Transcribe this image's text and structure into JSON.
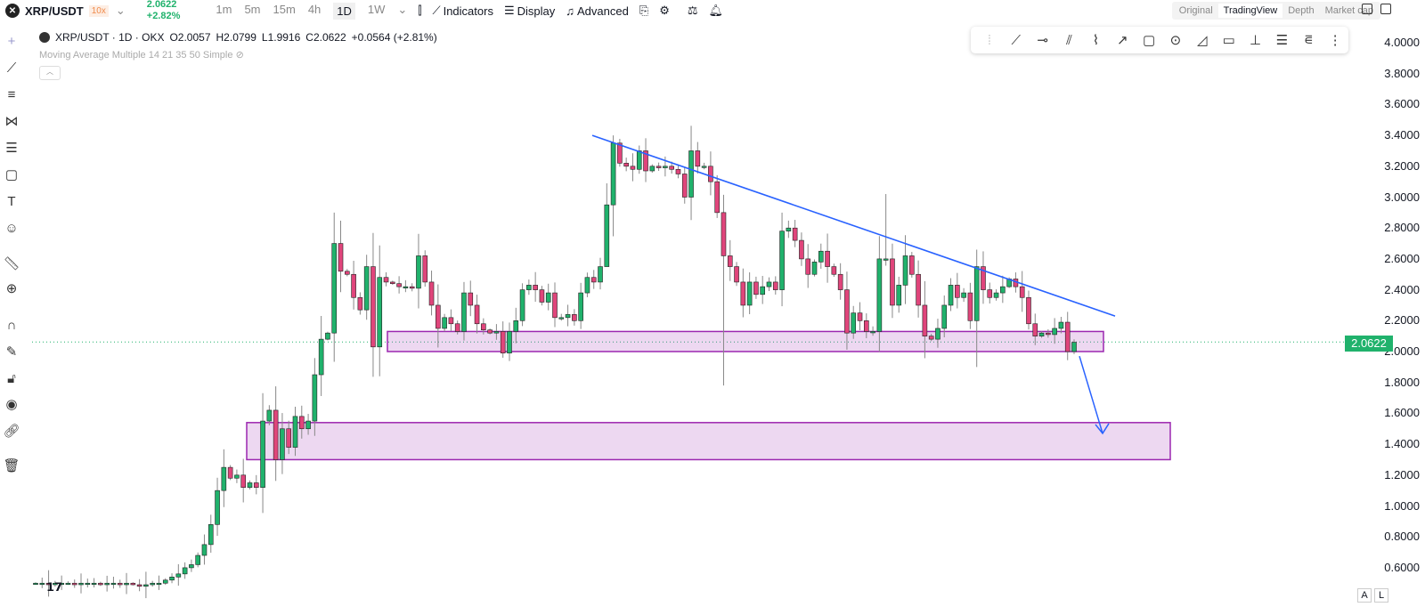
{
  "header": {
    "symbol": "XRP/USDT",
    "leverage": "10x",
    "price": "2.0622",
    "change": "+2.82%",
    "timeframes": [
      "1m",
      "5m",
      "15m",
      "4h",
      "1D",
      "1W"
    ],
    "active_tf": "1D",
    "indicators": "Indicators",
    "display": "Display",
    "advanced": "Advanced",
    "view_tabs": [
      "Original",
      "TradingView",
      "Depth",
      "Market cap"
    ],
    "active_view": "TradingView"
  },
  "legend": {
    "title": "XRP/USDT · 1D · OKX",
    "open": "O2.0057",
    "high": "H2.0799",
    "low": "L1.9916",
    "close": "C2.0622",
    "change": "+0.0564 (+2.81%)",
    "indicator": "Moving Average Multiple 14 21 35 50 Simple"
  },
  "axis": {
    "labels": [
      "4.0000",
      "3.8000",
      "3.6000",
      "3.4000",
      "3.2000",
      "3.0000",
      "2.8000",
      "2.6000",
      "2.4000",
      "2.2000",
      "2.0000",
      "1.8000",
      "1.6000",
      "1.4000",
      "1.2000",
      "1.0000",
      "0.8000",
      "0.6000"
    ],
    "current": "2.0622"
  },
  "bottom": {
    "auto": "A",
    "log": "L"
  },
  "colors": {
    "up": "#20b26c",
    "down": "#e0457b",
    "zone": "#9c27b0",
    "trend": "#2962ff"
  },
  "chart_data": {
    "type": "candlestick",
    "ylim": [
      0.45,
      4.1
    ],
    "closes": [
      0.5,
      0.5,
      0.49,
      0.5,
      0.5,
      0.5,
      0.49,
      0.5,
      0.5,
      0.5,
      0.49,
      0.5,
      0.5,
      0.49,
      0.5,
      0.49,
      0.48,
      0.49,
      0.5,
      0.5,
      0.52,
      0.54,
      0.56,
      0.6,
      0.62,
      0.68,
      0.75,
      0.88,
      1.1,
      1.25,
      1.18,
      1.2,
      1.12,
      1.15,
      1.12,
      1.55,
      1.62,
      1.3,
      1.5,
      1.38,
      1.58,
      1.5,
      1.55,
      1.85,
      2.08,
      2.12,
      2.7,
      2.52,
      2.5,
      2.35,
      2.27,
      2.55,
      2.03,
      2.48,
      2.45,
      2.44,
      2.42,
      2.42,
      2.41,
      2.62,
      2.45,
      2.3,
      2.15,
      2.22,
      2.18,
      2.13,
      2.38,
      2.3,
      2.18,
      2.14,
      2.12,
      2.13,
      1.99,
      2.13,
      2.2,
      2.4,
      2.43,
      2.4,
      2.32,
      2.38,
      2.22,
      2.22,
      2.24,
      2.2,
      2.38,
      2.48,
      2.45,
      2.55,
      2.95,
      3.35,
      3.22,
      3.2,
      3.18,
      3.3,
      3.17,
      3.2,
      3.19,
      3.2,
      3.18,
      3.15,
      3.0,
      3.3,
      3.2,
      3.2,
      3.1,
      2.9,
      2.62,
      2.55,
      2.45,
      2.3,
      2.45,
      2.37,
      2.42,
      2.45,
      2.4,
      2.78,
      2.8,
      2.72,
      2.6,
      2.5,
      2.58,
      2.65,
      2.55,
      2.5,
      2.4,
      2.12,
      2.25,
      2.2,
      2.13,
      2.13,
      2.6,
      2.6,
      2.3,
      2.43,
      2.62,
      2.5,
      2.3,
      2.1,
      2.08,
      2.15,
      2.3,
      2.43,
      2.35,
      2.38,
      2.2,
      2.55,
      2.4,
      2.35,
      2.38,
      2.42,
      2.47,
      2.42,
      2.35,
      2.18,
      2.1,
      2.12,
      2.11,
      2.15,
      2.19,
      2.0,
      2.06
    ],
    "wick_overrides": [
      {
        "i": 46,
        "high": 2.9
      },
      {
        "i": 88,
        "low": 2.6
      },
      {
        "i": 89,
        "high": 3.4
      },
      {
        "i": 106,
        "low": 1.78
      },
      {
        "i": 131,
        "high": 3.02
      },
      {
        "i": 145,
        "low": 1.9
      },
      {
        "i": 72,
        "low": 1.96
      }
    ],
    "zones": [
      {
        "top": 2.13,
        "bottom": 2.0
      },
      {
        "top": 1.54,
        "bottom": 1.3
      }
    ],
    "trendline": {
      "from": 3.4,
      "to": 2.23
    },
    "projection": {
      "from": 1.97,
      "to": 1.47
    }
  }
}
